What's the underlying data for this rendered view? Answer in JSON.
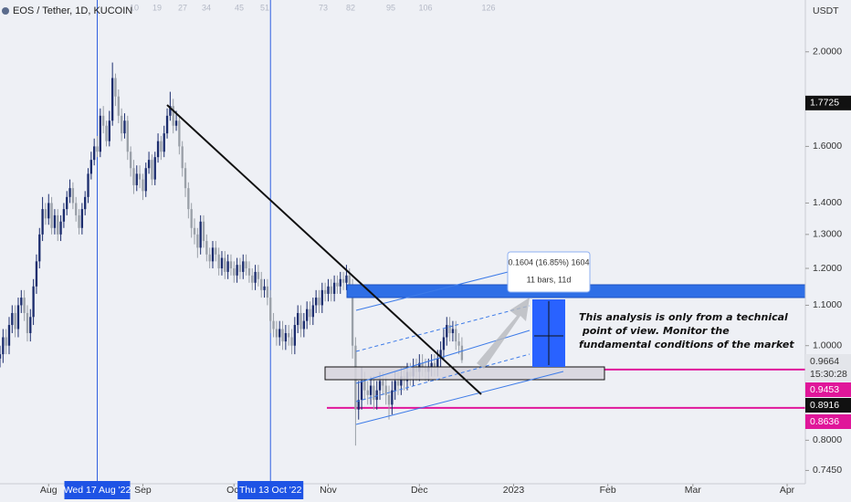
{
  "chart_data": {
    "type": "candlestick",
    "title": "EOS / Tether, 1D, KUCOIN",
    "currency": "USDT",
    "log_scale": true,
    "grid": false,
    "up_color": "#1c2d6e",
    "down_color": "#9aa0a8",
    "ylim": [
      0.722,
      2.26
    ],
    "yticks": [
      {
        "value": 2.0,
        "label": "2.0000"
      },
      {
        "value": 1.6,
        "label": "1.6000"
      },
      {
        "value": 1.4,
        "label": "1.4000"
      },
      {
        "value": 1.3,
        "label": "1.3000"
      },
      {
        "value": 1.2,
        "label": "1.2000"
      },
      {
        "value": 1.1,
        "label": "1.1000"
      },
      {
        "value": 1.0,
        "label": "1.0000"
      },
      {
        "value": 0.8,
        "label": "0.8000"
      },
      {
        "value": 0.745,
        "label": "0.7450"
      }
    ],
    "xlim": [
      "2022-07-16",
      "2023-04-07"
    ],
    "xticks": [
      {
        "value": "2022-08-01",
        "label": "Aug"
      },
      {
        "value": "2022-09-01",
        "label": "Sep"
      },
      {
        "value": "2022-10-01",
        "label": "Oct"
      },
      {
        "value": "2022-11-01",
        "label": "Nov"
      },
      {
        "value": "2022-12-01",
        "label": "Dec"
      },
      {
        "value": "2023-01-01",
        "label": "2023"
      },
      {
        "value": "2023-02-01",
        "label": "Feb"
      },
      {
        "value": "2023-03-01",
        "label": "Mar"
      },
      {
        "value": "2023-04-01",
        "label": "Apr"
      }
    ],
    "crosshairs": [
      {
        "x": "2022-08-17",
        "label": "Wed 17 Aug '22"
      },
      {
        "x": "2022-10-13",
        "label": "Thu 13 Oct '22"
      }
    ],
    "bar_counts": [
      10,
      19,
      27,
      34,
      45,
      51,
      73,
      82,
      95,
      106,
      126
    ],
    "price_labels": {
      "high": 1.7725,
      "last": 0.9664,
      "countdown": "15:30:28",
      "levels": [
        0.9453,
        0.8636
      ],
      "crosshair": 0.8916
    },
    "measure": {
      "change": "0.1604 (16.85%) 1604",
      "span": "11 bars, 11d"
    },
    "annotation": [
      "This analysis is only from a technical",
      " point of view. Monitor the",
      "fundamental conditions of the market"
    ],
    "x": [
      "2022-07-16",
      "2022-07-17",
      "2022-07-18",
      "2022-07-19",
      "2022-07-20",
      "2022-07-21",
      "2022-07-22",
      "2022-07-23",
      "2022-07-24",
      "2022-07-25",
      "2022-07-26",
      "2022-07-27",
      "2022-07-28",
      "2022-07-29",
      "2022-07-30",
      "2022-07-31",
      "2022-08-01",
      "2022-08-02",
      "2022-08-03",
      "2022-08-04",
      "2022-08-05",
      "2022-08-06",
      "2022-08-07",
      "2022-08-08",
      "2022-08-09",
      "2022-08-10",
      "2022-08-11",
      "2022-08-12",
      "2022-08-13",
      "2022-08-14",
      "2022-08-15",
      "2022-08-16",
      "2022-08-17",
      "2022-08-18",
      "2022-08-19",
      "2022-08-20",
      "2022-08-21",
      "2022-08-22",
      "2022-08-23",
      "2022-08-24",
      "2022-08-25",
      "2022-08-26",
      "2022-08-27",
      "2022-08-28",
      "2022-08-29",
      "2022-08-30",
      "2022-08-31",
      "2022-09-01",
      "2022-09-02",
      "2022-09-03",
      "2022-09-04",
      "2022-09-05",
      "2022-09-06",
      "2022-09-07",
      "2022-09-08",
      "2022-09-09",
      "2022-09-10",
      "2022-09-11",
      "2022-09-12",
      "2022-09-13",
      "2022-09-14",
      "2022-09-15",
      "2022-09-16",
      "2022-09-17",
      "2022-09-18",
      "2022-09-19",
      "2022-09-20",
      "2022-09-21",
      "2022-09-22",
      "2022-09-23",
      "2022-09-24",
      "2022-09-25",
      "2022-09-26",
      "2022-09-27",
      "2022-09-28",
      "2022-09-29",
      "2022-09-30",
      "2022-10-01",
      "2022-10-02",
      "2022-10-03",
      "2022-10-04",
      "2022-10-05",
      "2022-10-06",
      "2022-10-07",
      "2022-10-08",
      "2022-10-09",
      "2022-10-10",
      "2022-10-11",
      "2022-10-12",
      "2022-10-13",
      "2022-10-14",
      "2022-10-15",
      "2022-10-16",
      "2022-10-17",
      "2022-10-18",
      "2022-10-19",
      "2022-10-20",
      "2022-10-21",
      "2022-10-22",
      "2022-10-23",
      "2022-10-24",
      "2022-10-25",
      "2022-10-26",
      "2022-10-27",
      "2022-10-28",
      "2022-10-29",
      "2022-10-30",
      "2022-10-31",
      "2022-11-01",
      "2022-11-02",
      "2022-11-03",
      "2022-11-04",
      "2022-11-05",
      "2022-11-06",
      "2022-11-07",
      "2022-11-08",
      "2022-11-09",
      "2022-11-10",
      "2022-11-11",
      "2022-11-12",
      "2022-11-13",
      "2022-11-14",
      "2022-11-15",
      "2022-11-16",
      "2022-11-17",
      "2022-11-18",
      "2022-11-19",
      "2022-11-20",
      "2022-11-21",
      "2022-11-22",
      "2022-11-23",
      "2022-11-24",
      "2022-11-25",
      "2022-11-26",
      "2022-11-27",
      "2022-11-28",
      "2022-11-29",
      "2022-11-30",
      "2022-12-01",
      "2022-12-02",
      "2022-12-03",
      "2022-12-04",
      "2022-12-05",
      "2022-12-06",
      "2022-12-07",
      "2022-12-08",
      "2022-12-09",
      "2022-12-10",
      "2022-12-11",
      "2022-12-12",
      "2022-12-13",
      "2022-12-14",
      "2022-12-15"
    ],
    "ohlc": [
      [
        0.97,
        1.0,
        0.95,
        0.98
      ],
      [
        0.98,
        1.04,
        0.96,
        1.02
      ],
      [
        1.02,
        1.04,
        0.98,
        1.0
      ],
      [
        1.0,
        1.07,
        0.98,
        1.05
      ],
      [
        1.05,
        1.1,
        1.03,
        1.08
      ],
      [
        1.08,
        1.1,
        1.02,
        1.04
      ],
      [
        1.04,
        1.12,
        1.02,
        1.1
      ],
      [
        1.1,
        1.14,
        1.08,
        1.12
      ],
      [
        1.12,
        1.14,
        1.06,
        1.08
      ],
      [
        1.08,
        1.1,
        1.01,
        1.03
      ],
      [
        1.03,
        1.09,
        1.01,
        1.07
      ],
      [
        1.07,
        1.17,
        1.05,
        1.15
      ],
      [
        1.15,
        1.24,
        1.13,
        1.22
      ],
      [
        1.22,
        1.32,
        1.2,
        1.3
      ],
      [
        1.3,
        1.42,
        1.28,
        1.38
      ],
      [
        1.38,
        1.4,
        1.33,
        1.35
      ],
      [
        1.35,
        1.43,
        1.33,
        1.4
      ],
      [
        1.4,
        1.42,
        1.3,
        1.32
      ],
      [
        1.32,
        1.38,
        1.3,
        1.36
      ],
      [
        1.36,
        1.38,
        1.28,
        1.3
      ],
      [
        1.3,
        1.36,
        1.28,
        1.34
      ],
      [
        1.34,
        1.4,
        1.32,
        1.38
      ],
      [
        1.38,
        1.44,
        1.36,
        1.42
      ],
      [
        1.42,
        1.48,
        1.4,
        1.45
      ],
      [
        1.45,
        1.47,
        1.38,
        1.4
      ],
      [
        1.4,
        1.42,
        1.34,
        1.36
      ],
      [
        1.36,
        1.38,
        1.3,
        1.32
      ],
      [
        1.32,
        1.4,
        1.3,
        1.38
      ],
      [
        1.38,
        1.44,
        1.36,
        1.42
      ],
      [
        1.42,
        1.52,
        1.4,
        1.5
      ],
      [
        1.5,
        1.58,
        1.48,
        1.55
      ],
      [
        1.55,
        1.63,
        1.53,
        1.6
      ],
      [
        1.6,
        1.64,
        1.56,
        1.58
      ],
      [
        1.58,
        1.75,
        1.56,
        1.72
      ],
      [
        1.72,
        1.76,
        1.65,
        1.68
      ],
      [
        1.68,
        1.7,
        1.6,
        1.62
      ],
      [
        1.62,
        1.74,
        1.6,
        1.7
      ],
      [
        1.7,
        1.95,
        1.68,
        1.88
      ],
      [
        1.88,
        1.9,
        1.76,
        1.8
      ],
      [
        1.8,
        1.83,
        1.69,
        1.72
      ],
      [
        1.72,
        1.75,
        1.62,
        1.65
      ],
      [
        1.65,
        1.73,
        1.63,
        1.7
      ],
      [
        1.7,
        1.72,
        1.55,
        1.58
      ],
      [
        1.58,
        1.6,
        1.49,
        1.52
      ],
      [
        1.52,
        1.55,
        1.43,
        1.46
      ],
      [
        1.46,
        1.53,
        1.44,
        1.5
      ],
      [
        1.5,
        1.53,
        1.45,
        1.48
      ],
      [
        1.48,
        1.5,
        1.41,
        1.44
      ],
      [
        1.44,
        1.54,
        1.42,
        1.52
      ],
      [
        1.52,
        1.58,
        1.5,
        1.55
      ],
      [
        1.55,
        1.57,
        1.46,
        1.48
      ],
      [
        1.48,
        1.58,
        1.46,
        1.56
      ],
      [
        1.56,
        1.65,
        1.54,
        1.62
      ],
      [
        1.62,
        1.64,
        1.55,
        1.58
      ],
      [
        1.58,
        1.68,
        1.56,
        1.65
      ],
      [
        1.65,
        1.75,
        1.63,
        1.72
      ],
      [
        1.72,
        1.82,
        1.7,
        1.76
      ],
      [
        1.76,
        1.79,
        1.65,
        1.68
      ],
      [
        1.68,
        1.74,
        1.66,
        1.7
      ],
      [
        1.7,
        1.72,
        1.57,
        1.6
      ],
      [
        1.6,
        1.62,
        1.49,
        1.52
      ],
      [
        1.52,
        1.54,
        1.42,
        1.45
      ],
      [
        1.45,
        1.47,
        1.35,
        1.38
      ],
      [
        1.38,
        1.4,
        1.29,
        1.32
      ],
      [
        1.32,
        1.35,
        1.27,
        1.3
      ],
      [
        1.3,
        1.32,
        1.23,
        1.26
      ],
      [
        1.26,
        1.36,
        1.24,
        1.34
      ],
      [
        1.34,
        1.36,
        1.26,
        1.28
      ],
      [
        1.28,
        1.3,
        1.22,
        1.24
      ],
      [
        1.24,
        1.26,
        1.2,
        1.22
      ],
      [
        1.22,
        1.28,
        1.2,
        1.26
      ],
      [
        1.26,
        1.28,
        1.22,
        1.24
      ],
      [
        1.24,
        1.26,
        1.18,
        1.2
      ],
      [
        1.2,
        1.25,
        1.18,
        1.23
      ],
      [
        1.23,
        1.25,
        1.17,
        1.19
      ],
      [
        1.19,
        1.24,
        1.17,
        1.22
      ],
      [
        1.22,
        1.24,
        1.18,
        1.2
      ],
      [
        1.2,
        1.22,
        1.16,
        1.18
      ],
      [
        1.18,
        1.23,
        1.16,
        1.21
      ],
      [
        1.21,
        1.23,
        1.17,
        1.19
      ],
      [
        1.19,
        1.24,
        1.17,
        1.22
      ],
      [
        1.22,
        1.24,
        1.18,
        1.2
      ],
      [
        1.2,
        1.22,
        1.16,
        1.18
      ],
      [
        1.18,
        1.2,
        1.14,
        1.16
      ],
      [
        1.16,
        1.21,
        1.14,
        1.19
      ],
      [
        1.19,
        1.21,
        1.15,
        1.17
      ],
      [
        1.17,
        1.19,
        1.12,
        1.14
      ],
      [
        1.14,
        1.17,
        1.12,
        1.15
      ],
      [
        1.15,
        1.17,
        1.1,
        1.12
      ],
      [
        1.12,
        1.14,
        1.03,
        1.06
      ],
      [
        1.06,
        1.08,
        1.02,
        1.04
      ],
      [
        1.04,
        1.06,
        1.0,
        1.02
      ],
      [
        1.02,
        1.06,
        1.0,
        1.04
      ],
      [
        1.04,
        1.06,
        0.99,
        1.01
      ],
      [
        1.01,
        1.05,
        0.99,
        1.03
      ],
      [
        1.03,
        1.05,
        1.0,
        1.02
      ],
      [
        1.02,
        1.04,
        0.98,
        1.0
      ],
      [
        1.0,
        1.07,
        0.98,
        1.05
      ],
      [
        1.05,
        1.1,
        1.03,
        1.08
      ],
      [
        1.08,
        1.1,
        1.02,
        1.04
      ],
      [
        1.04,
        1.08,
        1.02,
        1.06
      ],
      [
        1.06,
        1.11,
        1.04,
        1.09
      ],
      [
        1.09,
        1.11,
        1.05,
        1.07
      ],
      [
        1.07,
        1.12,
        1.05,
        1.1
      ],
      [
        1.1,
        1.14,
        1.08,
        1.12
      ],
      [
        1.12,
        1.14,
        1.08,
        1.1
      ],
      [
        1.1,
        1.16,
        1.08,
        1.14
      ],
      [
        1.14,
        1.16,
        1.11,
        1.13
      ],
      [
        1.13,
        1.17,
        1.11,
        1.15
      ],
      [
        1.15,
        1.17,
        1.11,
        1.13
      ],
      [
        1.13,
        1.18,
        1.11,
        1.16
      ],
      [
        1.16,
        1.18,
        1.13,
        1.15
      ],
      [
        1.15,
        1.19,
        1.13,
        1.17
      ],
      [
        1.17,
        1.19,
        1.14,
        1.16
      ],
      [
        1.16,
        1.21,
        1.14,
        1.18
      ],
      [
        1.18,
        1.2,
        1.13,
        1.15
      ],
      [
        1.15,
        1.17,
        0.97,
        1.0
      ],
      [
        1.0,
        1.02,
        0.79,
        0.86
      ],
      [
        0.86,
        0.92,
        0.84,
        0.88
      ],
      [
        0.88,
        0.95,
        0.86,
        0.92
      ],
      [
        0.92,
        0.94,
        0.88,
        0.9
      ],
      [
        0.9,
        0.92,
        0.87,
        0.89
      ],
      [
        0.89,
        0.93,
        0.87,
        0.91
      ],
      [
        0.91,
        0.93,
        0.86,
        0.88
      ],
      [
        0.88,
        0.92,
        0.86,
        0.9
      ],
      [
        0.9,
        0.94,
        0.88,
        0.92
      ],
      [
        0.92,
        0.94,
        0.89,
        0.91
      ],
      [
        0.91,
        0.93,
        0.87,
        0.89
      ],
      [
        0.89,
        0.91,
        0.84,
        0.87
      ],
      [
        0.87,
        0.92,
        0.85,
        0.9
      ],
      [
        0.9,
        0.94,
        0.88,
        0.92
      ],
      [
        0.92,
        0.94,
        0.89,
        0.91
      ],
      [
        0.91,
        0.95,
        0.89,
        0.93
      ],
      [
        0.93,
        0.95,
        0.9,
        0.92
      ],
      [
        0.92,
        0.96,
        0.9,
        0.94
      ],
      [
        0.94,
        0.96,
        0.91,
        0.93
      ],
      [
        0.93,
        0.97,
        0.91,
        0.95
      ],
      [
        0.95,
        0.97,
        0.92,
        0.94
      ],
      [
        0.94,
        0.98,
        0.92,
        0.96
      ],
      [
        0.96,
        0.98,
        0.93,
        0.95
      ],
      [
        0.95,
        0.97,
        0.92,
        0.94
      ],
      [
        0.94,
        0.97,
        0.92,
        0.95
      ],
      [
        0.95,
        0.98,
        0.93,
        0.96
      ],
      [
        0.96,
        0.98,
        0.93,
        0.95
      ],
      [
        0.95,
        0.99,
        0.93,
        0.97
      ],
      [
        0.97,
        1.01,
        0.95,
        0.99
      ],
      [
        0.99,
        1.04,
        0.97,
        1.02
      ],
      [
        1.02,
        1.07,
        1.0,
        1.05
      ],
      [
        1.05,
        1.07,
        1.01,
        1.03
      ],
      [
        1.03,
        1.06,
        1.01,
        1.04
      ],
      [
        1.04,
        1.06,
        0.99,
        1.01
      ],
      [
        1.01,
        1.03,
        0.98,
        1.0
      ],
      [
        1.0,
        1.02,
        0.96,
        0.9664
      ]
    ]
  }
}
